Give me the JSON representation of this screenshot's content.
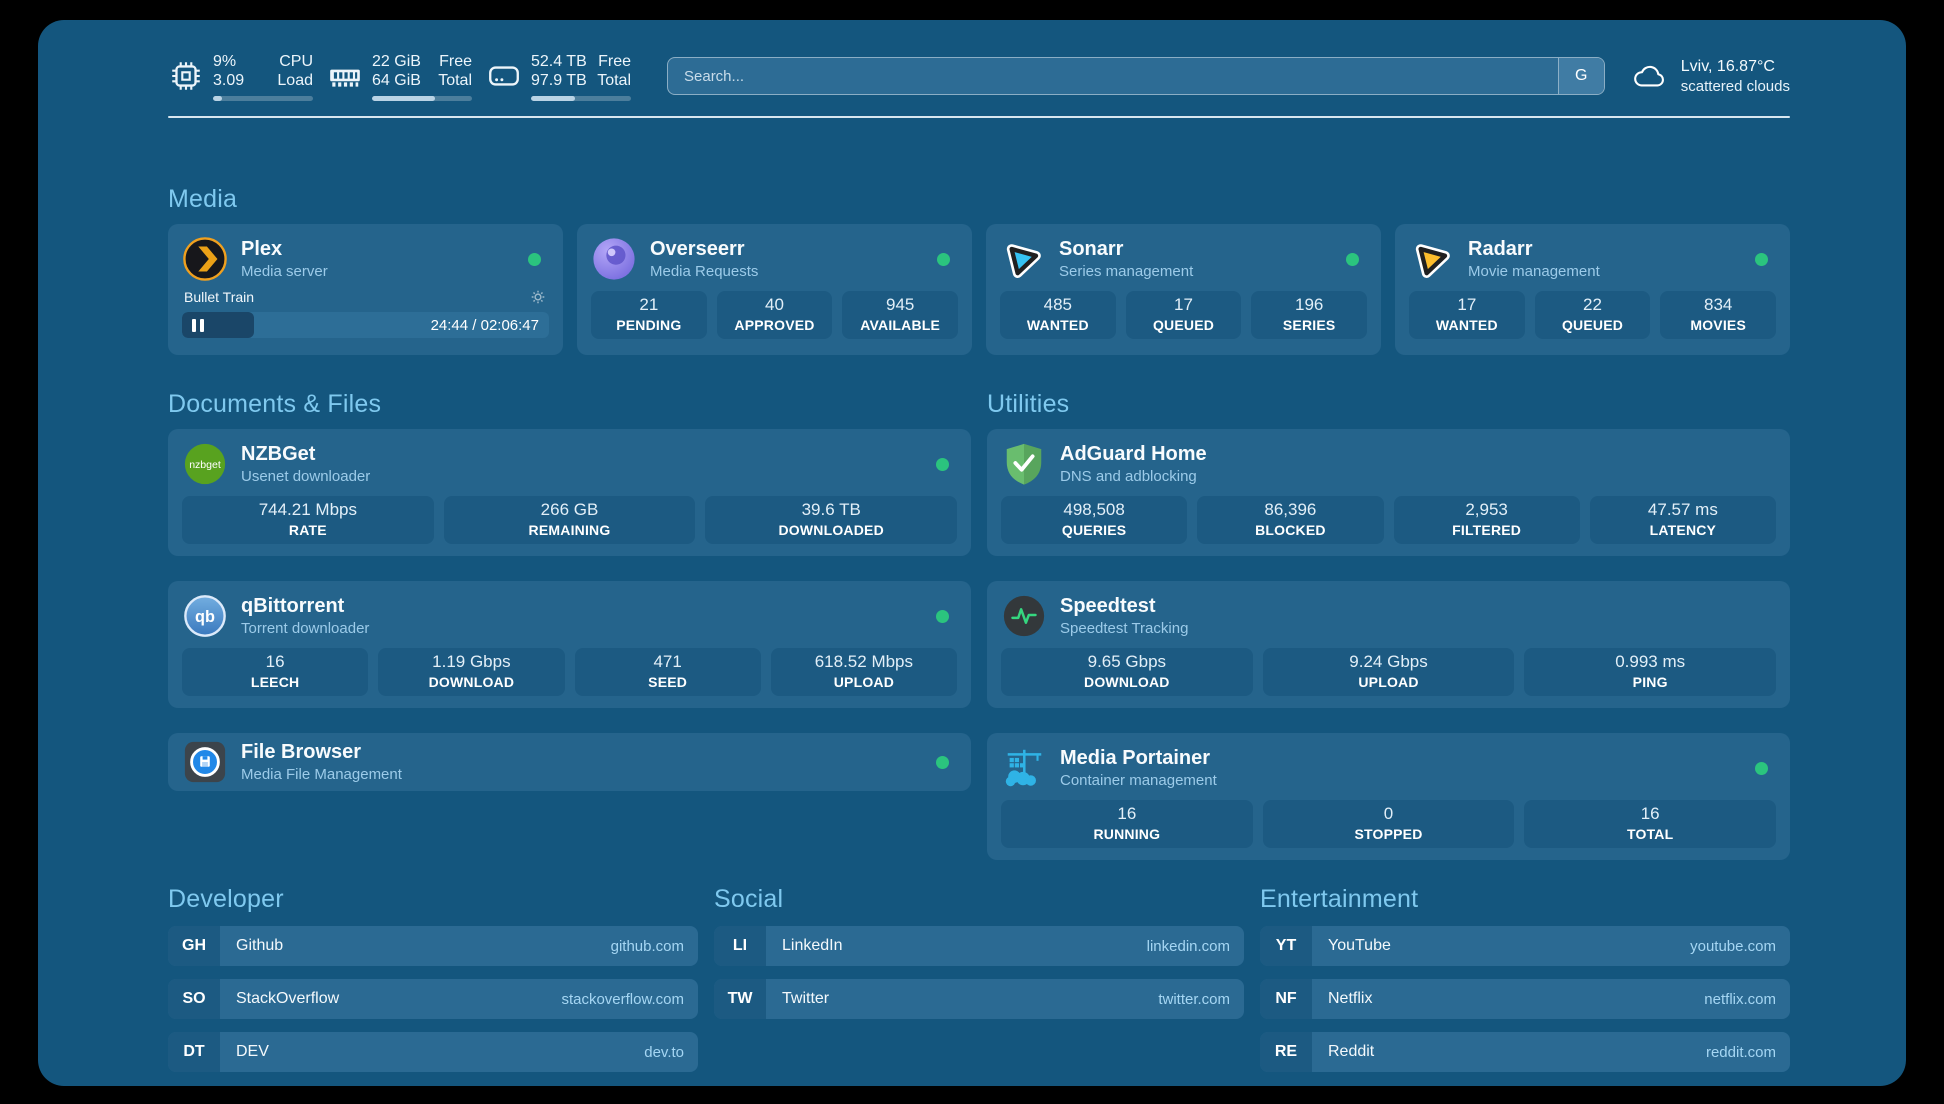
{
  "colors": {
    "online_green": "#2BC47E",
    "accent_blue": "#7FC9EF",
    "app_background": "#14567E",
    "card_background": "#25648C"
  },
  "icons": {
    "nzbget_text": "nzbget",
    "qbittorrent_text": "qb"
  },
  "topbar": {
    "system_stats": [
      {
        "icon": "cpu-icon",
        "rows": [
          {
            "value": "9%",
            "label": "CPU"
          },
          {
            "value": "3.09",
            "label": "Load"
          }
        ],
        "progress_percent": 9
      },
      {
        "icon": "ram-icon",
        "rows": [
          {
            "value": "22 GiB",
            "label": "Free"
          },
          {
            "value": "64 GiB",
            "label": "Total"
          }
        ],
        "progress_percent": 63
      },
      {
        "icon": "disk-icon",
        "rows": [
          {
            "value": "52.4 TB",
            "label": "Free"
          },
          {
            "value": "97.9 TB",
            "label": "Total"
          }
        ],
        "progress_percent": 44
      }
    ],
    "search": {
      "placeholder": "Search...",
      "engine_button": "G"
    },
    "weather": {
      "location": "Lviv, 16.87°C",
      "condition": "scattered clouds"
    }
  },
  "sections": {
    "media": {
      "title": "Media",
      "cards": [
        {
          "name": "Plex",
          "subtitle": "Media server",
          "icon": "plex-icon",
          "online": true,
          "player": {
            "now_playing": "Bullet Train",
            "time": "24:44 / 02:06:47",
            "progress_percent": 19.5
          }
        },
        {
          "name": "Overseerr",
          "subtitle": "Media Requests",
          "icon": "overseerr-icon",
          "online": true,
          "stats": [
            {
              "value": "21",
              "label": "PENDING"
            },
            {
              "value": "40",
              "label": "APPROVED"
            },
            {
              "value": "945",
              "label": "AVAILABLE"
            }
          ]
        },
        {
          "name": "Sonarr",
          "subtitle": "Series management",
          "icon": "sonarr-icon",
          "online": true,
          "stats": [
            {
              "value": "485",
              "label": "WANTED"
            },
            {
              "value": "17",
              "label": "QUEUED"
            },
            {
              "value": "196",
              "label": "SERIES"
            }
          ]
        },
        {
          "name": "Radarr",
          "subtitle": "Movie management",
          "icon": "radarr-icon",
          "online": true,
          "stats": [
            {
              "value": "17",
              "label": "WANTED"
            },
            {
              "value": "22",
              "label": "QUEUED"
            },
            {
              "value": "834",
              "label": "MOVIES"
            }
          ]
        }
      ]
    },
    "documents": {
      "title": "Documents & Files",
      "cards": [
        {
          "name": "NZBGet",
          "subtitle": "Usenet downloader",
          "icon": "nzbget-icon",
          "online": true,
          "stats": [
            {
              "value": "744.21 Mbps",
              "label": "RATE"
            },
            {
              "value": "266 GB",
              "label": "REMAINING"
            },
            {
              "value": "39.6 TB",
              "label": "DOWNLOADED"
            }
          ]
        },
        {
          "name": "qBittorrent",
          "subtitle": "Torrent downloader",
          "icon": "qbittorrent-icon",
          "online": true,
          "stats": [
            {
              "value": "16",
              "label": "LEECH"
            },
            {
              "value": "1.19 Gbps",
              "label": "DOWNLOAD"
            },
            {
              "value": "471",
              "label": "SEED"
            },
            {
              "value": "618.52 Mbps",
              "label": "UPLOAD"
            }
          ]
        },
        {
          "name": "File Browser",
          "subtitle": "Media File Management",
          "icon": "filebrowser-icon",
          "online": true,
          "stats": []
        }
      ]
    },
    "utilities": {
      "title": "Utilities",
      "cards": [
        {
          "name": "AdGuard Home",
          "subtitle": "DNS and adblocking",
          "icon": "adguard-icon",
          "online": false,
          "stats": [
            {
              "value": "498,508",
              "label": "QUERIES"
            },
            {
              "value": "86,396",
              "label": "BLOCKED"
            },
            {
              "value": "2,953",
              "label": "FILTERED"
            },
            {
              "value": "47.57 ms",
              "label": "LATENCY"
            }
          ]
        },
        {
          "name": "Speedtest",
          "subtitle": "Speedtest Tracking",
          "icon": "speedtest-icon",
          "online": false,
          "stats": [
            {
              "value": "9.65 Gbps",
              "label": "DOWNLOAD"
            },
            {
              "value": "9.24 Gbps",
              "label": "UPLOAD"
            },
            {
              "value": "0.993 ms",
              "label": "PING"
            }
          ]
        },
        {
          "name": "Media Portainer",
          "subtitle": "Container management",
          "icon": "portainer-icon",
          "online": true,
          "stats": [
            {
              "value": "16",
              "label": "RUNNING"
            },
            {
              "value": "0",
              "label": "STOPPED"
            },
            {
              "value": "16",
              "label": "TOTAL"
            }
          ]
        }
      ]
    }
  },
  "link_sections": [
    {
      "title": "Developer",
      "items": [
        {
          "abbr": "GH",
          "name": "Github",
          "url": "github.com"
        },
        {
          "abbr": "SO",
          "name": "StackOverflow",
          "url": "stackoverflow.com"
        },
        {
          "abbr": "DT",
          "name": "DEV",
          "url": "dev.to"
        }
      ]
    },
    {
      "title": "Social",
      "items": [
        {
          "abbr": "LI",
          "name": "LinkedIn",
          "url": "linkedin.com"
        },
        {
          "abbr": "TW",
          "name": "Twitter",
          "url": "twitter.com"
        }
      ]
    },
    {
      "title": "Entertainment",
      "items": [
        {
          "abbr": "YT",
          "name": "YouTube",
          "url": "youtube.com"
        },
        {
          "abbr": "NF",
          "name": "Netflix",
          "url": "netflix.com"
        },
        {
          "abbr": "RE",
          "name": "Reddit",
          "url": "reddit.com"
        }
      ]
    }
  ]
}
